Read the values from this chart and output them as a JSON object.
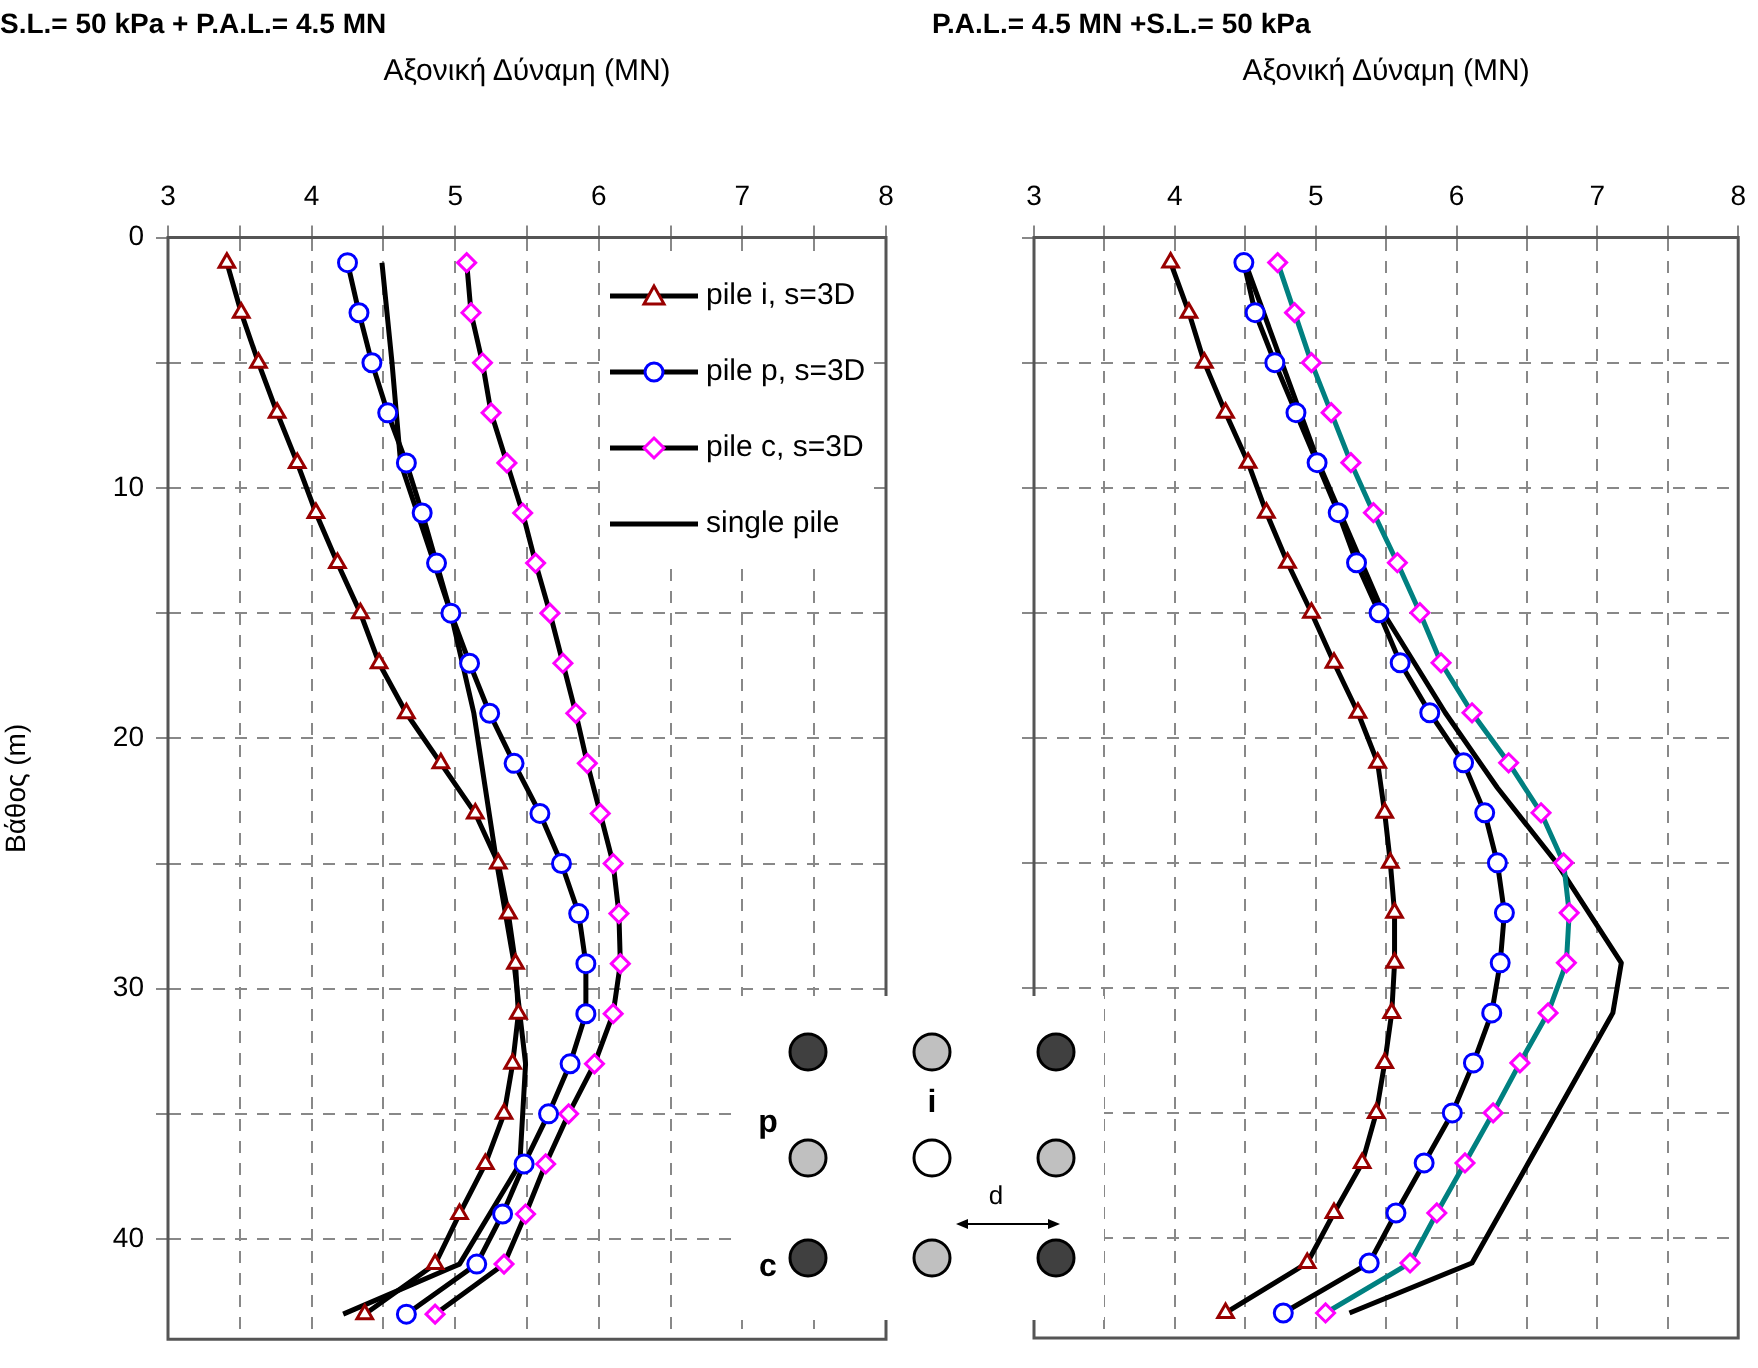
{
  "chart_data": [
    {
      "type": "line",
      "title": "S.L.= 50 kPa + P.A.L.= 4.5 MN",
      "xlabel": "Αξονική Δύναμη (MN)",
      "ylabel": "Βάθος (m)",
      "xlim": [
        3,
        8
      ],
      "xticks": [
        3,
        {
          "value": 3.5,
          "label": null
        },
        4,
        {
          "value": 4.5,
          "label": null
        },
        5,
        {
          "value": 5.5,
          "label": null
        },
        6,
        {
          "value": 6.5,
          "label": null
        },
        7,
        {
          "value": 7.5,
          "label": null
        },
        8
      ],
      "ylim": [
        44,
        0
      ],
      "yticks": [
        0,
        {
          "value": 5,
          "label": null
        },
        10,
        {
          "value": 15,
          "label": null
        },
        20,
        {
          "value": 25,
          "label": null
        },
        30,
        {
          "value": 35,
          "label": null
        },
        40
      ],
      "grid": true,
      "legend": "top right",
      "annotations": [
        "p",
        "i",
        "c",
        "d"
      ],
      "series": [
        {
          "name": "pile i, s=3D",
          "marker": "triangle",
          "color": "#000000",
          "colors": [
            "#990000",
            "#990000",
            "#990000",
            "#990000",
            "#990000",
            "#990000",
            "#990000",
            "#990000",
            "#990000",
            "#990000",
            "#990000",
            "#990000",
            "#990000",
            "#990000",
            "#990000",
            "#990000",
            "#990000",
            "#990000",
            "#990000",
            "#990000",
            "#990000",
            "#990000"
          ],
          "x": [
            3.41,
            3.51,
            3.63,
            3.76,
            3.9,
            4.03,
            4.18,
            4.34,
            4.47,
            4.66,
            4.9,
            5.14,
            5.3,
            5.37,
            5.42,
            5.44,
            5.4,
            5.34,
            5.21,
            5.03,
            4.86,
            4.37
          ],
          "values": [
            1,
            3,
            5,
            7,
            9,
            11,
            13,
            15,
            17,
            19,
            21,
            23,
            25,
            27,
            29,
            31,
            33,
            35,
            37,
            39,
            41,
            43
          ]
        },
        {
          "name": "pile p, s=3D",
          "marker": "circle",
          "color": "#000000",
          "colors": [
            "#0000ff",
            "#0000ff",
            "#0000ff",
            "#0000ff",
            "#0000ff",
            "#0000ff",
            "#0000ff",
            "#0000ff",
            "#0000ff",
            "#0000ff",
            "#0000ff",
            "#0000ff",
            "#0000ff",
            "#0000ff",
            "#0000ff",
            "#0000ff",
            "#0000ff",
            "#0000ff",
            "#0000ff",
            "#0000ff",
            "#0000ff",
            "#0000ff"
          ],
          "x": [
            4.25,
            4.33,
            4.42,
            4.53,
            4.66,
            4.77,
            4.87,
            4.97,
            5.1,
            5.24,
            5.41,
            5.59,
            5.74,
            5.86,
            5.91,
            5.91,
            5.8,
            5.65,
            5.48,
            5.33,
            5.15,
            4.66
          ],
          "values": [
            1,
            3,
            5,
            7,
            9,
            11,
            13,
            15,
            17,
            19,
            21,
            23,
            25,
            27,
            29,
            31,
            33,
            35,
            37,
            39,
            41,
            43
          ]
        },
        {
          "name": "pile c, s=3D",
          "marker": "diamond",
          "color": "#000000",
          "colors": [
            "#ff00ff",
            "#ff00ff",
            "#ff00ff",
            "#ff00ff",
            "#ff00ff",
            "#ff00ff",
            "#ff00ff",
            "#ff00ff",
            "#ff00ff",
            "#ff00ff",
            "#ff00ff",
            "#ff00ff",
            "#ff00ff",
            "#ff00ff",
            "#ff00ff",
            "#ff00ff",
            "#ff00ff",
            "#ff00ff",
            "#ff00ff",
            "#ff00ff",
            "#ff00ff",
            "#ff00ff"
          ],
          "x": [
            5.08,
            5.11,
            5.19,
            5.25,
            5.36,
            5.47,
            5.56,
            5.66,
            5.75,
            5.84,
            5.92,
            6.01,
            6.1,
            6.14,
            6.15,
            6.1,
            5.97,
            5.79,
            5.63,
            5.49,
            5.34,
            4.86
          ],
          "values": [
            1,
            3,
            5,
            7,
            9,
            11,
            13,
            15,
            17,
            19,
            21,
            23,
            25,
            27,
            29,
            31,
            33,
            35,
            37,
            39,
            41,
            43
          ]
        },
        {
          "name": "single pile",
          "marker": "none",
          "color": "#000000",
          "x": [
            4.49,
            4.56,
            4.62,
            4.97,
            5.13,
            5.21,
            5.29,
            5.41,
            5.49,
            5.45,
            5.03,
            4.22
          ],
          "values": [
            1,
            5,
            9,
            15,
            19,
            22,
            25,
            29,
            33,
            37,
            41,
            43
          ]
        }
      ]
    },
    {
      "type": "line",
      "title": "P.A.L.= 4.5 MN +S.L.= 50 kPa",
      "xlabel": "Αξονική Δύναμη (MN)",
      "xlim": [
        3,
        8
      ],
      "xticks": [
        3,
        {
          "value": 3.5,
          "label": null
        },
        4,
        {
          "value": 4.5,
          "label": null
        },
        5,
        {
          "value": 5.5,
          "label": null
        },
        6,
        {
          "value": 6.5,
          "label": null
        },
        7,
        {
          "value": 7.5,
          "label": null
        },
        8
      ],
      "ylim": [
        44,
        0
      ],
      "yticks": [
        0,
        {
          "value": 5,
          "label": null
        },
        10,
        {
          "value": 15,
          "label": null
        },
        20,
        {
          "value": 25,
          "label": null
        },
        30,
        {
          "value": 35,
          "label": null
        },
        40
      ],
      "tick_labels": "x",
      "grid": true,
      "series": [
        {
          "marker": "triangle",
          "color": "#000000",
          "colors": [
            "#990000",
            "#990000",
            "#990000",
            "#990000",
            "#990000",
            "#990000",
            "#990000",
            "#990000",
            "#990000",
            "#990000",
            "#990000",
            "#990000",
            "#990000",
            "#990000",
            "#990000",
            "#990000",
            "#990000",
            "#990000",
            "#990000",
            "#990000",
            "#990000",
            "#990000"
          ],
          "x": [
            3.97,
            4.1,
            4.21,
            4.36,
            4.52,
            4.65,
            4.8,
            4.97,
            5.13,
            5.3,
            5.44,
            5.49,
            5.53,
            5.56,
            5.56,
            5.54,
            5.49,
            5.43,
            5.33,
            5.13,
            4.94,
            4.36
          ],
          "values": [
            1,
            3,
            5,
            7,
            9,
            11,
            13,
            15,
            17,
            19,
            21,
            23,
            25,
            27,
            29,
            31,
            33,
            35,
            37,
            39,
            41,
            43
          ]
        },
        {
          "marker": "circle",
          "color": "#000000",
          "colors": [
            "#0000ff",
            "#0000ff",
            "#0000ff",
            "#0000ff",
            "#0000ff",
            "#0000ff",
            "#0000ff",
            "#0000ff",
            "#0000ff",
            "#0000ff",
            "#0000ff",
            "#0000ff",
            "#0000ff",
            "#0000ff",
            "#0000ff",
            "#0000ff",
            "#0000ff",
            "#0000ff",
            "#0000ff",
            "#0000ff",
            "#0000ff",
            "#0000ff"
          ],
          "x": [
            4.49,
            4.57,
            4.71,
            4.86,
            5.01,
            5.16,
            5.29,
            5.45,
            5.6,
            5.81,
            6.05,
            6.2,
            6.29,
            6.34,
            6.31,
            6.25,
            6.12,
            5.97,
            5.77,
            5.57,
            5.38,
            4.77
          ],
          "values": [
            1,
            3,
            5,
            7,
            9,
            11,
            13,
            15,
            17,
            19,
            21,
            23,
            25,
            27,
            29,
            31,
            33,
            35,
            37,
            39,
            41,
            43
          ]
        },
        {
          "marker": "diamond",
          "color": "#008080",
          "colors": [
            "#ff00ff",
            "#ff00ff",
            "#ff00ff",
            "#ff00ff",
            "#ff00ff",
            "#ff00ff",
            "#ff00ff",
            "#ff00ff",
            "#ff00ff",
            "#ff00ff",
            "#ff00ff",
            "#ff00ff",
            "#ff00ff",
            "#ff00ff",
            "#ff00ff",
            "#ff00ff",
            "#ff00ff",
            "#ff00ff",
            "#ff00ff",
            "#ff00ff",
            "#ff00ff",
            "#ff00ff"
          ],
          "x": [
            4.73,
            4.85,
            4.97,
            5.11,
            5.25,
            5.41,
            5.58,
            5.74,
            5.89,
            6.11,
            6.37,
            6.6,
            6.76,
            6.8,
            6.78,
            6.65,
            6.45,
            6.26,
            6.06,
            5.86,
            5.67,
            5.07
          ],
          "values": [
            1,
            3,
            5,
            7,
            9,
            11,
            13,
            15,
            17,
            19,
            21,
            23,
            25,
            27,
            29,
            31,
            33,
            35,
            37,
            39,
            41,
            43
          ]
        },
        {
          "marker": "none",
          "color": "#000000",
          "x": [
            4.5,
            5.02,
            5.48,
            5.92,
            6.29,
            6.71,
            7.17,
            7.11,
            6.71,
            6.11,
            5.24
          ],
          "values": [
            1,
            9,
            15,
            19,
            22,
            25,
            29,
            31,
            35,
            41,
            43
          ]
        }
      ]
    }
  ]
}
